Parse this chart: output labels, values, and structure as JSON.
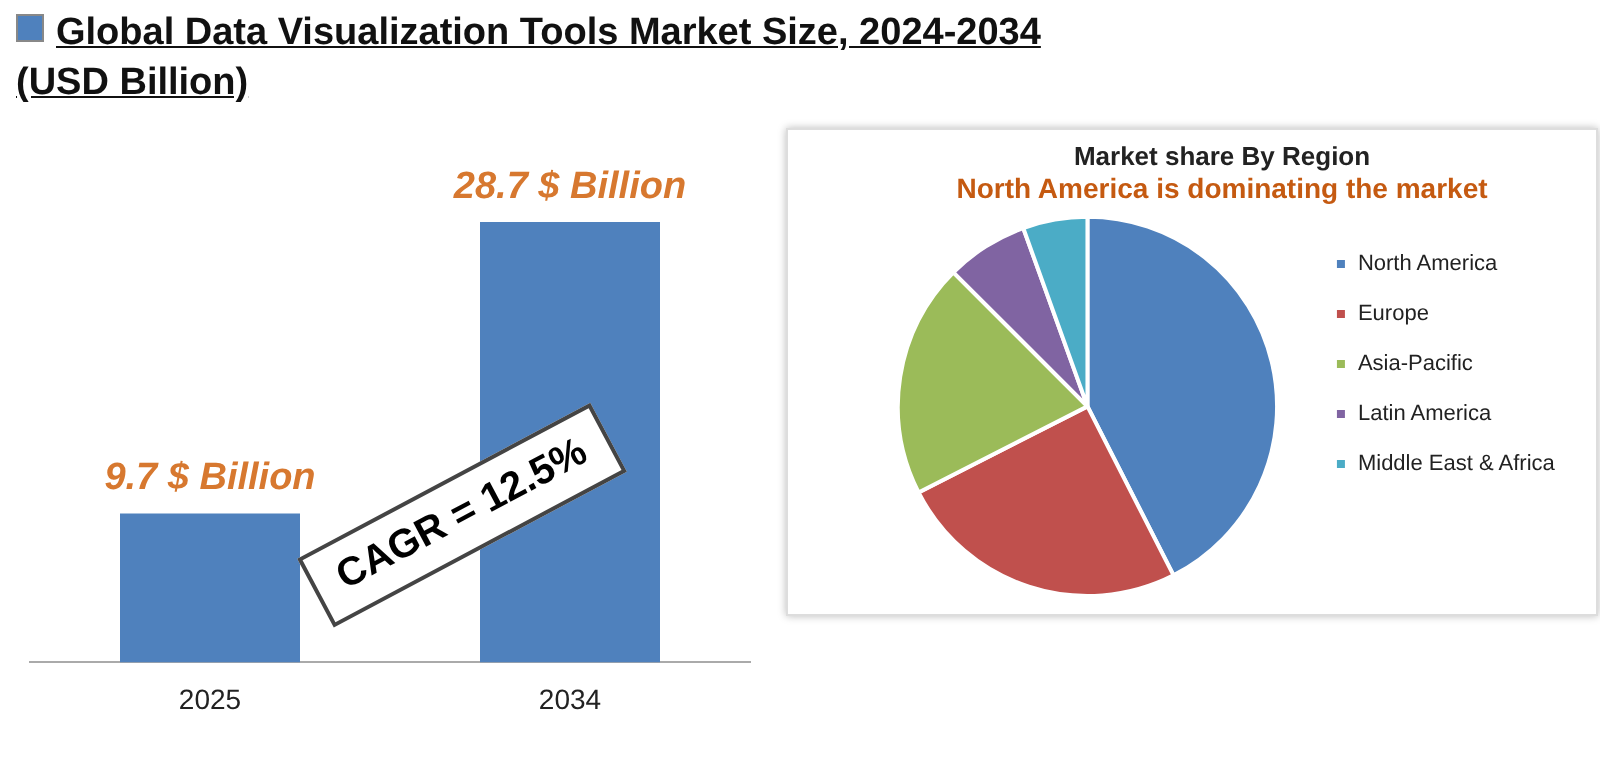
{
  "chart_data": [
    {
      "type": "bar",
      "title": "Global Data Visualization Tools Market Size, 2024-2034 (USD Billion)",
      "categories": [
        "2025",
        "2034"
      ],
      "values": [
        9.7,
        28.7
      ],
      "color": "#4f81bd",
      "value_labels": [
        "9.7 $ Billion",
        "28.7 $ Billion"
      ],
      "annotations": [
        "CAGR = 12.5%"
      ]
    },
    {
      "type": "pie",
      "title": "Market share By Region",
      "subtitle": "North America is dominating the market",
      "categories": [
        "North America",
        "Europe",
        "Asia-Pacific",
        "Latin America",
        "Middle East & Africa"
      ],
      "values": [
        42.5,
        25,
        20,
        7,
        5.5
      ],
      "colors": [
        "#4f81bd",
        "#c0504d",
        "#9bbb59",
        "#8064a2",
        "#4bacc6"
      ],
      "legend": "right"
    }
  ]
}
